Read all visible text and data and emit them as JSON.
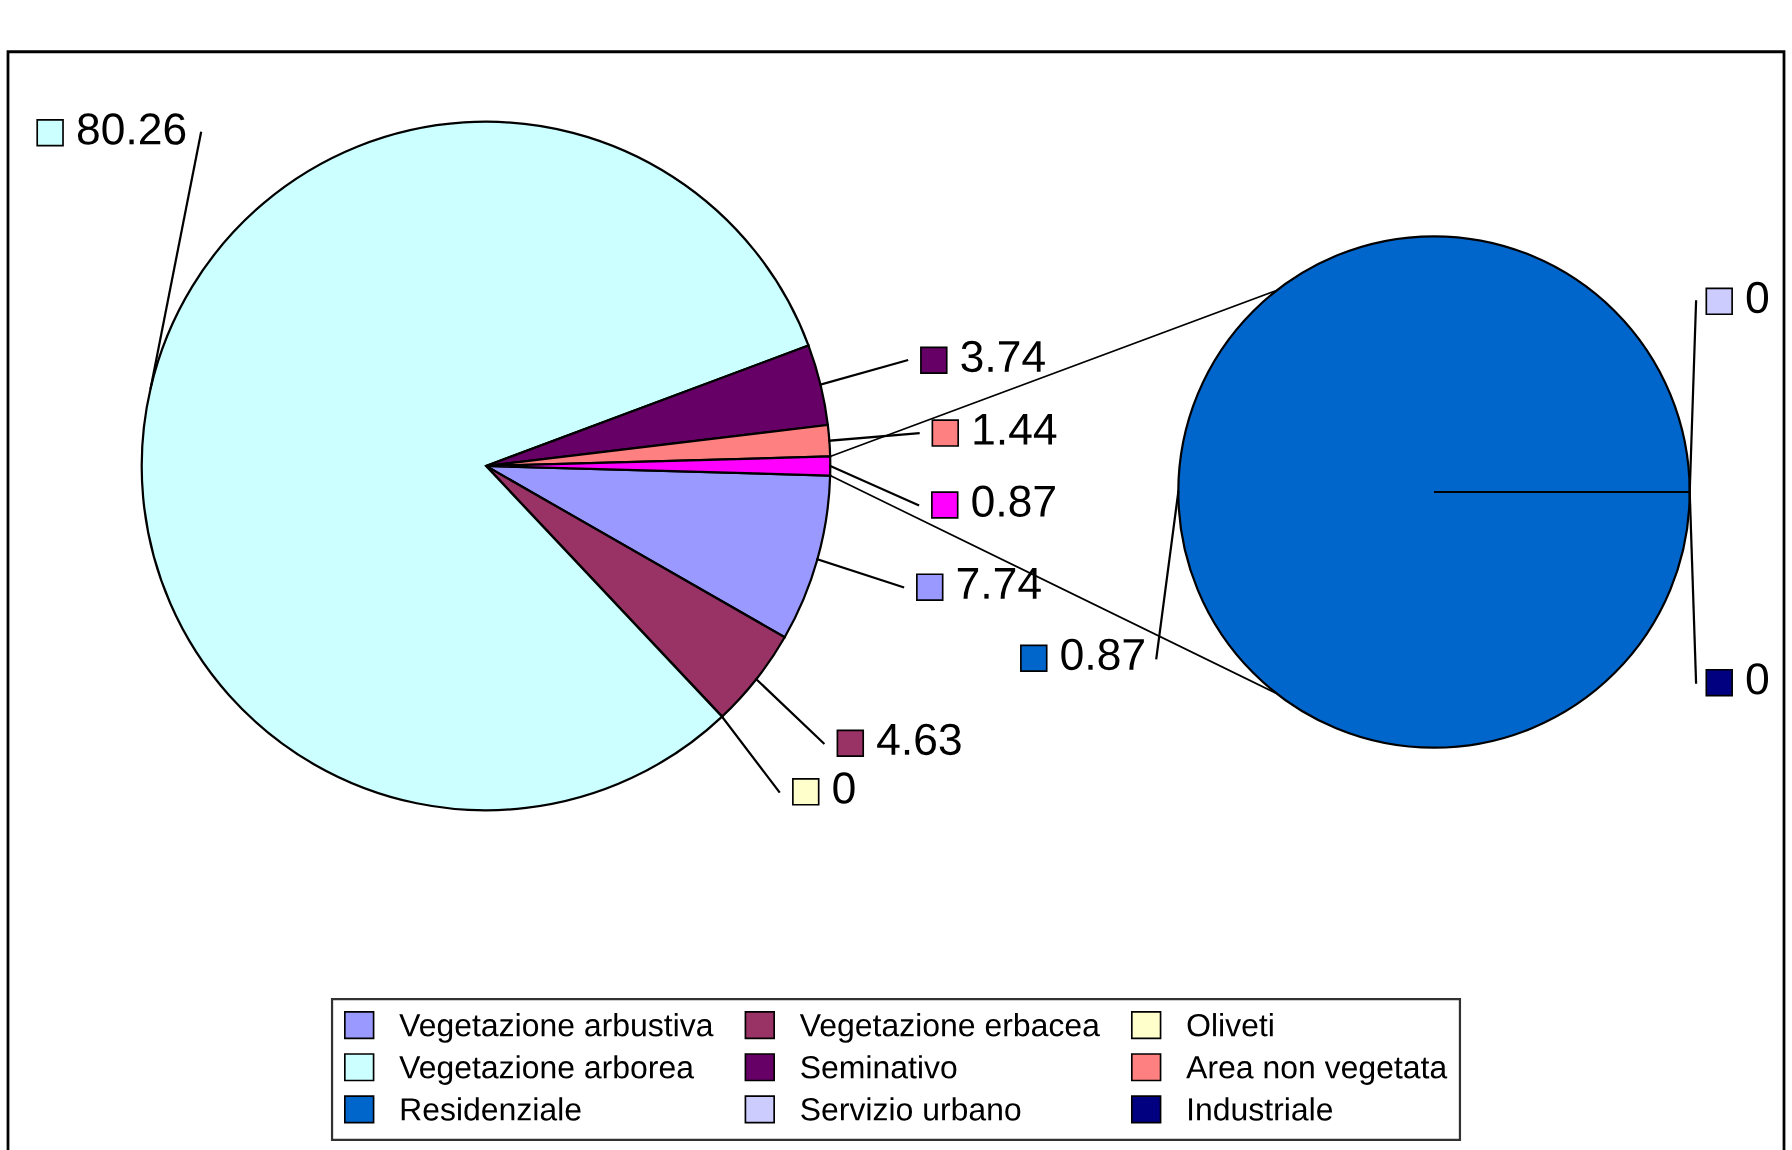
{
  "chart_data": [
    {
      "type": "pie",
      "categories": [
        "Vegetazione arbustiva",
        "Vegetazione erbacea",
        "Oliveti",
        "Vegetazione arborea",
        "Seminativo",
        "Area non vegetata",
        null
      ],
      "values": [
        7.74,
        4.63,
        0,
        80.26,
        3.74,
        1.44,
        0.87
      ],
      "value_labels": [
        "7.74",
        "4.63",
        "0",
        "80.26",
        "3.74",
        "1.44",
        "0.87"
      ],
      "colors": [
        "#9999ff",
        "#993366",
        "#ffffcc",
        "#ccffff",
        "#660066",
        "#ff8080",
        "#ff00ff"
      ],
      "legend": "bottom"
    },
    {
      "type": "pie",
      "categories": [
        "Residenziale",
        "Servizio urbano",
        "Industriale"
      ],
      "values": [
        0.87,
        0,
        0
      ],
      "value_labels": [
        "0.87",
        "0",
        "0"
      ],
      "colors": [
        "#0066cc",
        "#ccccff",
        "#000080"
      ],
      "legend": "bottom"
    }
  ]
}
